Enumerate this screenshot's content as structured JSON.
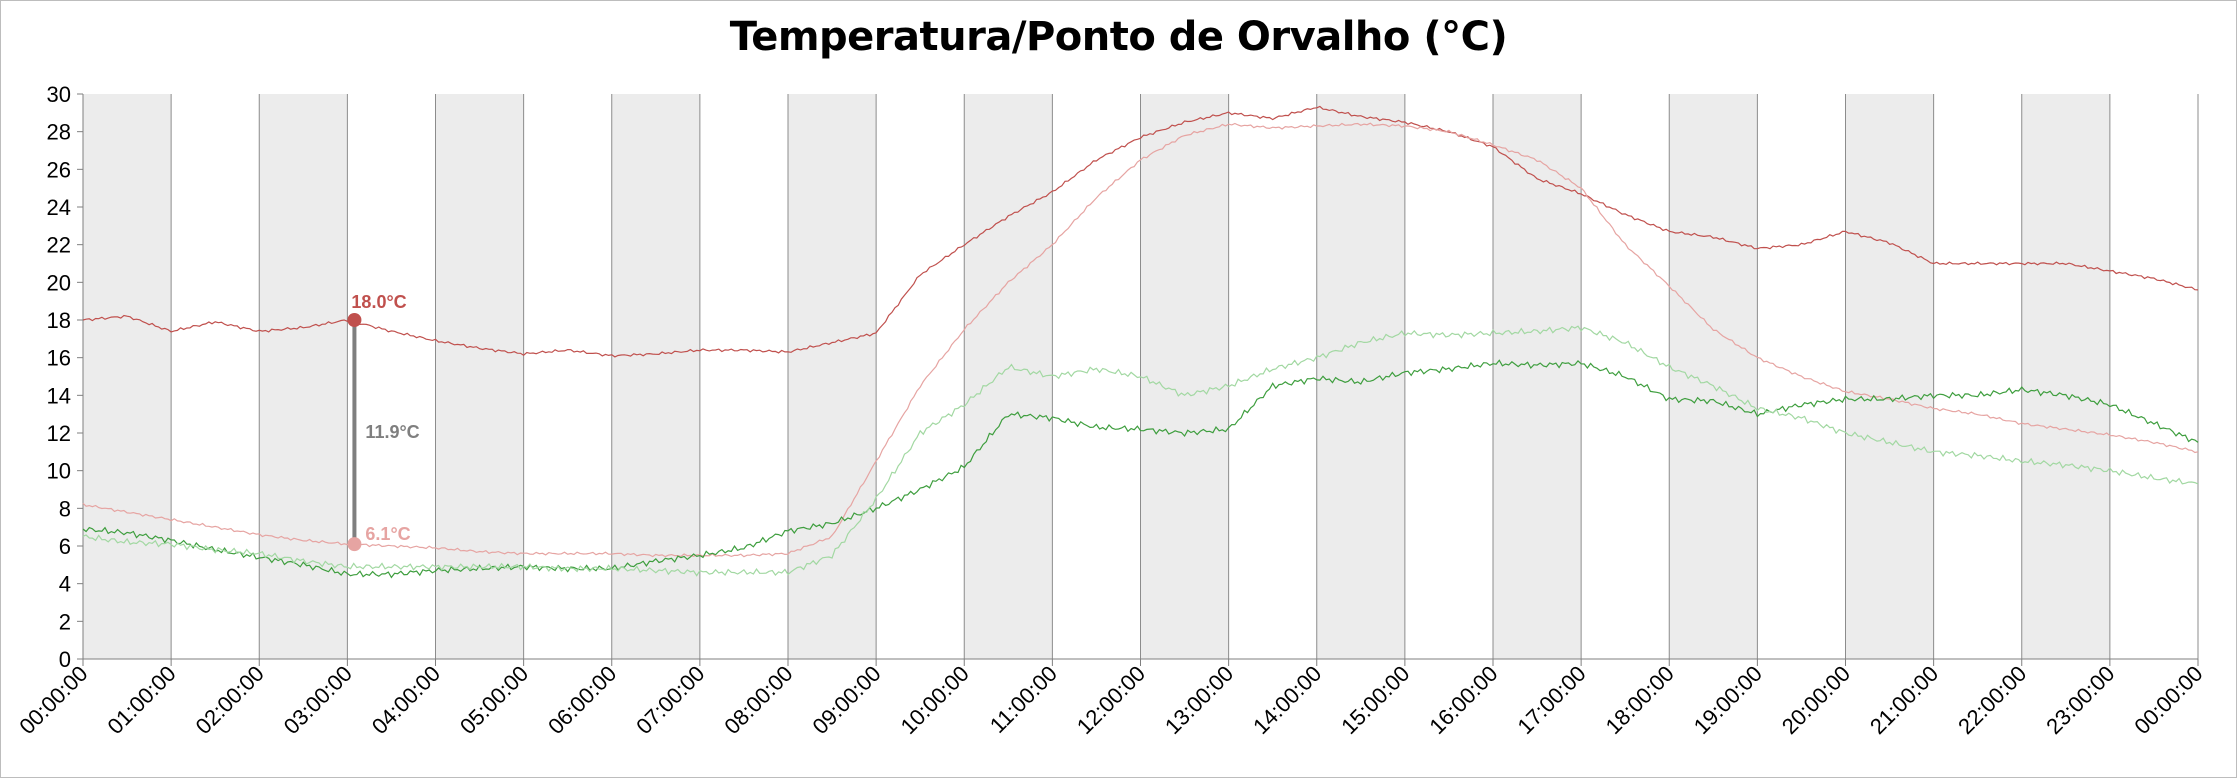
{
  "chart_data": {
    "type": "line",
    "title": "Temperatura/Ponto de Orvalho (°C)",
    "ylim": [
      0,
      30
    ],
    "y_ticks": [
      "0",
      "2",
      "4",
      "6",
      "8",
      "10",
      "12",
      "14",
      "16",
      "18",
      "20",
      "22",
      "24",
      "26",
      "28",
      "30"
    ],
    "x_ticks": [
      "00:00:00",
      "01:00:00",
      "02:00:00",
      "03:00:00",
      "04:00:00",
      "05:00:00",
      "06:00:00",
      "07:00:00",
      "08:00:00",
      "09:00:00",
      "10:00:00",
      "11:00:00",
      "12:00:00",
      "13:00:00",
      "14:00:00",
      "15:00:00",
      "16:00:00",
      "17:00:00",
      "18:00:00",
      "19:00:00",
      "20:00:00",
      "21:00:00",
      "22:00:00",
      "23:00:00",
      "00:00:00"
    ],
    "grid": "vertical lines, alternate hourly bands shaded grey",
    "x_hours": [
      0,
      0.5,
      1,
      1.5,
      2,
      2.5,
      3,
      3.5,
      4,
      4.5,
      5,
      5.5,
      6,
      6.5,
      7,
      7.5,
      8,
      8.5,
      9,
      9.5,
      10,
      10.5,
      11,
      11.5,
      12,
      12.5,
      13,
      13.5,
      14,
      14.5,
      15,
      15.5,
      16,
      16.5,
      17,
      17.5,
      18,
      18.5,
      19,
      19.5,
      20,
      20.5,
      21,
      21.5,
      22,
      22.5,
      23,
      23.5,
      24
    ],
    "series": [
      {
        "color": "#c0504d",
        "values": [
          18.0,
          18.2,
          17.4,
          17.9,
          17.4,
          17.6,
          18.0,
          17.4,
          16.9,
          16.5,
          16.2,
          16.4,
          16.1,
          16.2,
          16.4,
          16.4,
          16.3,
          16.8,
          17.3,
          20.4,
          22.0,
          23.5,
          24.8,
          26.5,
          27.7,
          28.5,
          29.0,
          28.7,
          29.3,
          28.8,
          28.5,
          28.0,
          27.2,
          25.5,
          24.7,
          23.6,
          22.7,
          22.4,
          21.8,
          22.0,
          22.7,
          22.1,
          21.0,
          21.0,
          21.0,
          21.0,
          20.6,
          20.2,
          19.6
        ]
      },
      {
        "color": "#e6a4a2",
        "values": [
          8.2,
          7.8,
          7.4,
          7.0,
          6.6,
          6.3,
          6.1,
          6.0,
          5.9,
          5.7,
          5.6,
          5.6,
          5.6,
          5.5,
          5.5,
          5.5,
          5.6,
          6.5,
          10.5,
          14.5,
          17.5,
          20.0,
          22.0,
          24.5,
          26.5,
          27.8,
          28.4,
          28.2,
          28.3,
          28.4,
          28.3,
          28.0,
          27.3,
          26.5,
          25.0,
          22.0,
          19.8,
          17.5,
          16.0,
          15.0,
          14.2,
          13.8,
          13.3,
          13.0,
          12.5,
          12.2,
          11.9,
          11.5,
          11.0
        ]
      },
      {
        "color": "#3e9e3e",
        "values": [
          6.9,
          6.7,
          6.3,
          5.8,
          5.4,
          5.0,
          4.5,
          4.5,
          4.7,
          4.8,
          4.9,
          4.8,
          4.8,
          5.2,
          5.5,
          5.9,
          6.8,
          7.2,
          8.0,
          9.0,
          10.2,
          13.0,
          12.8,
          12.3,
          12.2,
          12.0,
          12.2,
          14.5,
          14.9,
          14.7,
          15.2,
          15.4,
          15.7,
          15.6,
          15.7,
          15.0,
          13.8,
          13.7,
          13.0,
          13.5,
          13.8,
          13.8,
          14.0,
          14.0,
          14.3,
          14.0,
          13.5,
          12.5,
          11.5
        ]
      },
      {
        "color": "#a2d8a2",
        "values": [
          6.5,
          6.2,
          6.1,
          5.8,
          5.6,
          5.2,
          4.9,
          4.9,
          4.9,
          4.9,
          4.9,
          4.8,
          4.8,
          4.7,
          4.6,
          4.6,
          4.6,
          5.5,
          8.5,
          12.0,
          13.5,
          15.5,
          15.0,
          15.4,
          15.0,
          14.0,
          14.5,
          15.4,
          16.0,
          16.8,
          17.3,
          17.2,
          17.3,
          17.4,
          17.6,
          16.8,
          15.5,
          14.5,
          13.3,
          12.8,
          12.0,
          11.5,
          11.0,
          10.8,
          10.5,
          10.3,
          10.0,
          9.6,
          9.3
        ]
      }
    ],
    "annotations": [
      {
        "label": "18.0°C",
        "value": 18.0,
        "color": "#c0504d"
      },
      {
        "label": "11.9°C",
        "value": 11.9,
        "color": "#7f7f7f"
      },
      {
        "label": "6.1°C",
        "value": 6.1,
        "color": "#e6a4a2"
      }
    ]
  }
}
